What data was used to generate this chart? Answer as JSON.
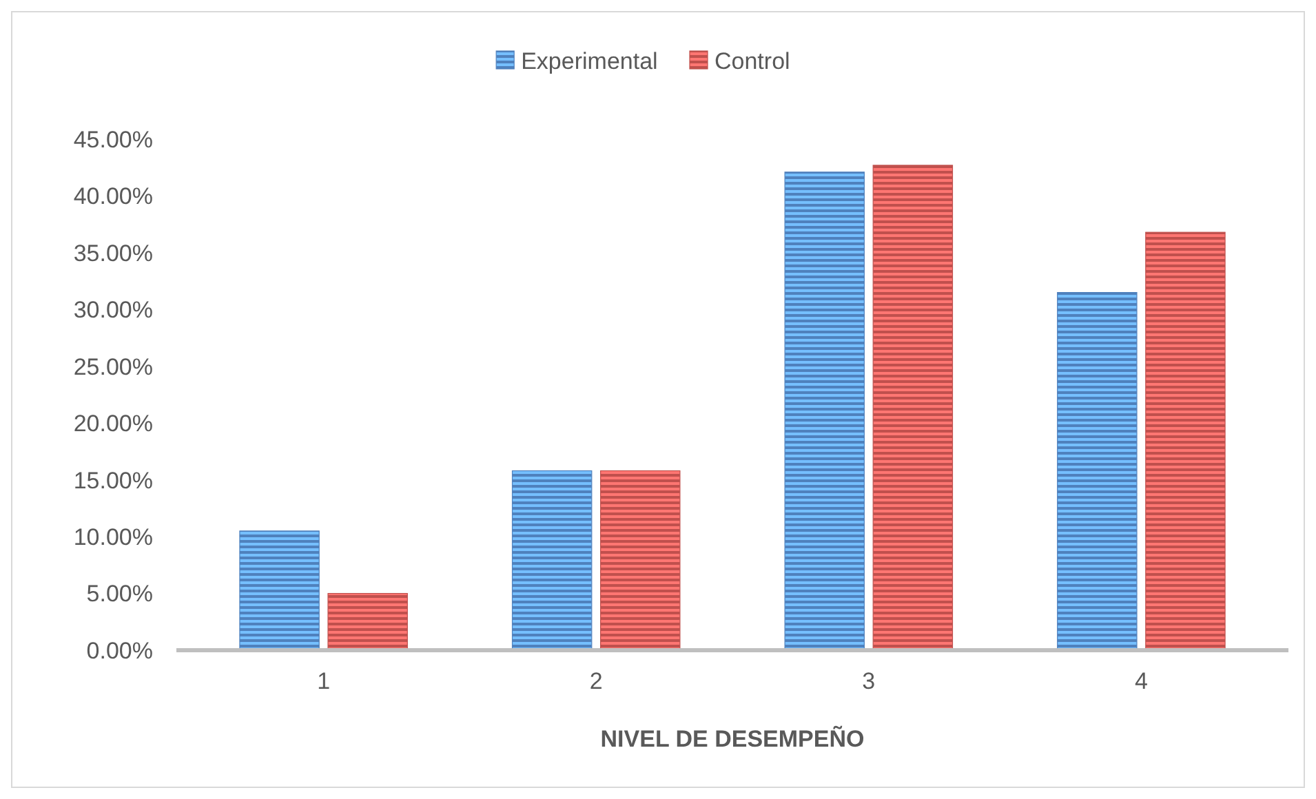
{
  "chart_data": {
    "type": "bar",
    "xlabel": "NIVEL DE DESEMPEÑO",
    "categories": [
      "1",
      "2",
      "3",
      "4"
    ],
    "series": [
      {
        "name": "Experimental",
        "color": "#4f81bd",
        "values": [
          10.5,
          15.8,
          42.1,
          31.5
        ]
      },
      {
        "name": "Control",
        "color": "#c0504d",
        "values": [
          5.0,
          15.8,
          42.7,
          36.8
        ]
      }
    ],
    "ylim": [
      0,
      45
    ],
    "yticks": [
      {
        "value": 0,
        "label": "0.00%"
      },
      {
        "value": 5,
        "label": "5.00%"
      },
      {
        "value": 10,
        "label": "10.00%"
      },
      {
        "value": 15,
        "label": "15.00%"
      },
      {
        "value": 20,
        "label": "20.00%"
      },
      {
        "value": 25,
        "label": "25.00%"
      },
      {
        "value": 30,
        "label": "30.00%"
      },
      {
        "value": 35,
        "label": "35.00%"
      },
      {
        "value": 40,
        "label": "40.00%"
      },
      {
        "value": 45,
        "label": "45.00%"
      }
    ],
    "grid": false,
    "legend": "top"
  }
}
